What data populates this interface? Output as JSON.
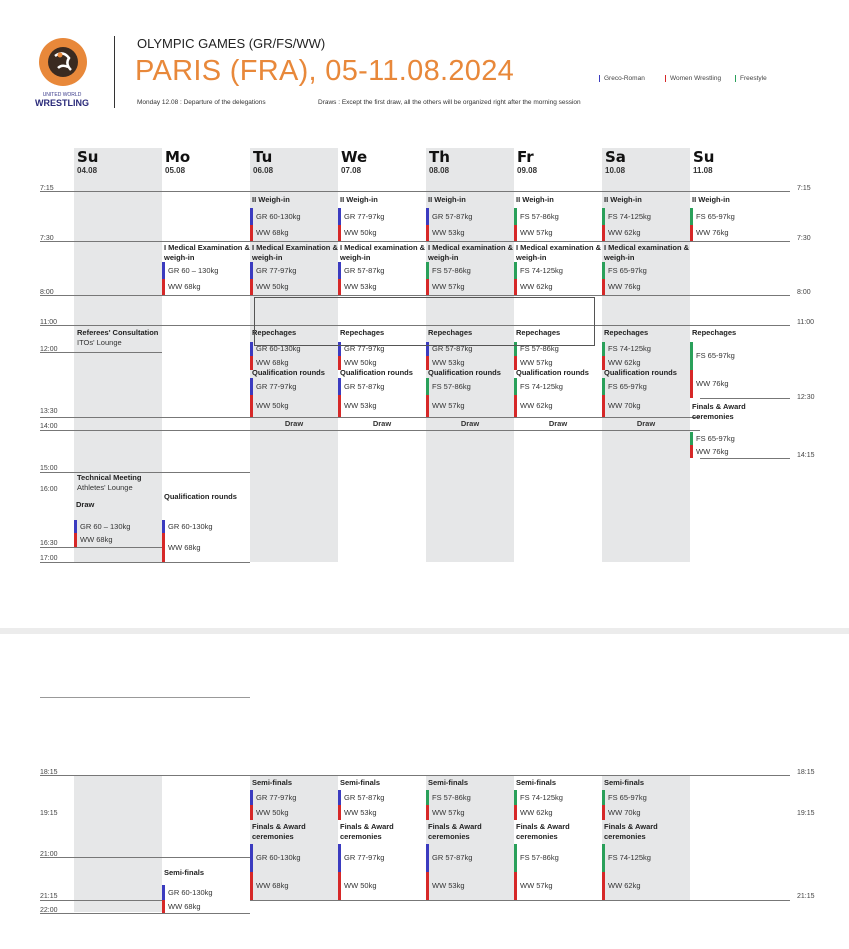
{
  "header": {
    "logo_text_top": "UNITED WORLD",
    "logo_text_bottom": "WRESTLING",
    "event": "OLYMPIC GAMES (GR/FS/WW)",
    "title": "PARIS (FRA), 05-11.08.2024",
    "note_departure": "Monday 12.08 : Departure of the delegations",
    "note_draws": "Draws : Except the first draw, all the others will be organized right after the morning session",
    "legend": [
      {
        "label": "Greco-Roman",
        "color": "#3b3bbf"
      },
      {
        "label": "Women Wrestling",
        "color": "#d62828"
      },
      {
        "label": "Freestyle",
        "color": "#2aa05a"
      }
    ],
    "accent_color": "#e8883a"
  },
  "colors": {
    "GR": "#3b3bbf",
    "WW": "#d62828",
    "FS": "#2aa05a"
  },
  "days": [
    {
      "day": "Su",
      "date": "04.08"
    },
    {
      "day": "Mo",
      "date": "05.08"
    },
    {
      "day": "Tu",
      "date": "06.08"
    },
    {
      "day": "We",
      "date": "07.08"
    },
    {
      "day": "Th",
      "date": "08.08"
    },
    {
      "day": "Fr",
      "date": "09.08"
    },
    {
      "day": "Sa",
      "date": "10.08"
    },
    {
      "day": "Su",
      "date": "11.08"
    }
  ],
  "times_left_top": [
    "7:15",
    "7:30",
    "8:00",
    "11:00",
    "12:00",
    "13:30",
    "14:00",
    "15:00",
    "16:00",
    "16:30",
    "17:00"
  ],
  "times_right_top": [
    "7:15",
    "7:30",
    "8:00",
    "11:00",
    "12:30",
    "14:15"
  ],
  "times_left_bottom": [
    "18:15",
    "19:15",
    "21:00",
    "21:15",
    "22:00"
  ],
  "times_right_bottom": [
    "18:15",
    "19:15",
    "21:15"
  ],
  "blocks": [
    {
      "title": "II Weigh-in",
      "items": [
        [
          "GR",
          "GR 60-130kg"
        ],
        [
          "WW",
          "WW 68kg"
        ]
      ]
    },
    {
      "title": "II Weigh-in",
      "items": [
        [
          "GR",
          "GR 77-97kg"
        ],
        [
          "WW",
          "WW 50kg"
        ]
      ]
    },
    {
      "title": "II Weigh-in",
      "items": [
        [
          "GR",
          "GR 57-87kg"
        ],
        [
          "WW",
          "WW 53kg"
        ]
      ]
    },
    {
      "title": "II Weigh-in",
      "items": [
        [
          "FS",
          "FS 57-86kg"
        ],
        [
          "WW",
          "WW 57kg"
        ]
      ]
    },
    {
      "title": "II Weigh-in",
      "items": [
        [
          "FS",
          "FS 74-125kg"
        ],
        [
          "WW",
          "WW 62kg"
        ]
      ]
    },
    {
      "title": "II Weigh-in",
      "items": [
        [
          "FS",
          "FS 65-97kg"
        ],
        [
          "WW",
          "WW 76kg"
        ]
      ]
    },
    {
      "title": "I Medical Examination & weigh-in",
      "items": [
        [
          "GR",
          "GR 60 – 130kg"
        ],
        [
          "WW",
          "WW 68kg"
        ]
      ]
    },
    {
      "title": "I Medical Examination & weigh-in",
      "items": [
        [
          "GR",
          "GR 77-97kg"
        ],
        [
          "WW",
          "WW 50kg"
        ]
      ]
    },
    {
      "title": "I Medical examination & weigh-in",
      "items": [
        [
          "GR",
          "GR 57-87kg"
        ],
        [
          "WW",
          "WW 53kg"
        ]
      ]
    },
    {
      "title": "I Medical examination & weigh-in",
      "items": [
        [
          "FS",
          "FS 57-86kg"
        ],
        [
          "WW",
          "WW 57kg"
        ]
      ]
    },
    {
      "title": "I Medical examination & weigh-in",
      "items": [
        [
          "FS",
          "FS 74-125kg"
        ],
        [
          "WW",
          "WW 62kg"
        ]
      ]
    },
    {
      "title": "I Medical examination & weigh-in",
      "items": [
        [
          "FS",
          "FS 65-97kg"
        ],
        [
          "WW",
          "WW 76kg"
        ]
      ]
    },
    {
      "title": "Repechages",
      "items": [
        [
          "GR",
          "GR 60-130kg"
        ],
        [
          "WW",
          "WW 68kg"
        ]
      ]
    },
    {
      "title": "Repechages",
      "items": [
        [
          "GR",
          "GR 77-97kg"
        ],
        [
          "WW",
          "WW 50kg"
        ]
      ]
    },
    {
      "title": "Repechages",
      "items": [
        [
          "GR",
          "GR 57-87kg"
        ],
        [
          "WW",
          "WW 53kg"
        ]
      ]
    },
    {
      "title": "Repechages",
      "items": [
        [
          "FS",
          "FS 57-86kg"
        ],
        [
          "WW",
          "WW 57kg"
        ]
      ]
    },
    {
      "title": "Repechages",
      "items": [
        [
          "FS",
          "FS 74-125kg"
        ],
        [
          "WW",
          "WW 62kg"
        ]
      ]
    },
    {
      "title": "Repechages",
      "items": [
        [
          "FS",
          "FS 65-97kg"
        ],
        [
          "WW",
          "WW 76kg"
        ]
      ]
    },
    {
      "title": "Qualification rounds",
      "items": [
        [
          "GR",
          "GR 77-97kg"
        ],
        [
          "WW",
          "WW 50kg"
        ]
      ]
    },
    {
      "title": "Qualification rounds",
      "items": [
        [
          "GR",
          "GR 57-87kg"
        ],
        [
          "WW",
          "WW 53kg"
        ]
      ]
    },
    {
      "title": "Qualification rounds",
      "items": [
        [
          "FS",
          "FS 57-86kg"
        ],
        [
          "WW",
          "WW 57kg"
        ]
      ]
    },
    {
      "title": "Qualification rounds",
      "items": [
        [
          "FS",
          "FS 74-125kg"
        ],
        [
          "WW",
          "WW 62kg"
        ]
      ]
    },
    {
      "title": "Qualification rounds",
      "items": [
        [
          "FS",
          "FS 65-97kg"
        ],
        [
          "WW",
          "WW 70kg"
        ]
      ]
    },
    {
      "title": "Finals & Award ceremonies",
      "items": [
        [
          "FS",
          "FS 65-97kg"
        ],
        [
          "WW",
          "WW 76kg"
        ]
      ]
    },
    {
      "title": "Draw",
      "items": [
        [
          "GR",
          "GR 60 – 130kg"
        ],
        [
          "WW",
          "WW 68kg"
        ]
      ]
    },
    {
      "title": "Qualification rounds",
      "items": [
        [
          "GR",
          "GR 60-130kg"
        ],
        [
          "WW",
          "WW 68kg"
        ]
      ]
    },
    {
      "title": "Semi-finals",
      "items": [
        [
          "GR",
          "GR 77-97kg"
        ],
        [
          "WW",
          "WW 50kg"
        ]
      ]
    },
    {
      "title": "Semi-finals",
      "items": [
        [
          "GR",
          "GR 57-87kg"
        ],
        [
          "WW",
          "WW 53kg"
        ]
      ]
    },
    {
      "title": "Semi-finals",
      "items": [
        [
          "FS",
          "FS 57-86kg"
        ],
        [
          "WW",
          "WW 57kg"
        ]
      ]
    },
    {
      "title": "Semi-finals",
      "items": [
        [
          "FS",
          "FS 74-125kg"
        ],
        [
          "WW",
          "WW 62kg"
        ]
      ]
    },
    {
      "title": "Semi-finals",
      "items": [
        [
          "FS",
          "FS 65-97kg"
        ],
        [
          "WW",
          "WW 70kg"
        ]
      ]
    },
    {
      "title": "Finals & Award ceremonies",
      "items": [
        [
          "GR",
          "GR 60-130kg"
        ],
        [
          "WW",
          "WW 68kg"
        ]
      ]
    },
    {
      "title": "Finals & Award ceremonies",
      "items": [
        [
          "GR",
          "GR 77-97kg"
        ],
        [
          "WW",
          "WW 50kg"
        ]
      ]
    },
    {
      "title": "Finals & Award ceremonies",
      "items": [
        [
          "GR",
          "GR 57-87kg"
        ],
        [
          "WW",
          "WW 53kg"
        ]
      ]
    },
    {
      "title": "Finals & Award ceremonies",
      "items": [
        [
          "FS",
          "FS 57-86kg"
        ],
        [
          "WW",
          "WW 57kg"
        ]
      ]
    },
    {
      "title": "Finals & Award ceremonies",
      "items": [
        [
          "FS",
          "FS 74-125kg"
        ],
        [
          "WW",
          "WW 62kg"
        ]
      ]
    },
    {
      "title": "Semi-finals",
      "items": [
        [
          "GR",
          "GR 60-130kg"
        ],
        [
          "WW",
          "WW 68kg"
        ]
      ]
    }
  ],
  "notes": [
    {
      "title": "Referees' Consultation",
      "sub": "ITOs' Lounge"
    },
    {
      "title": "Technical Meeting",
      "sub": "Athletes' Lounge"
    }
  ],
  "draw_label": "Draw"
}
